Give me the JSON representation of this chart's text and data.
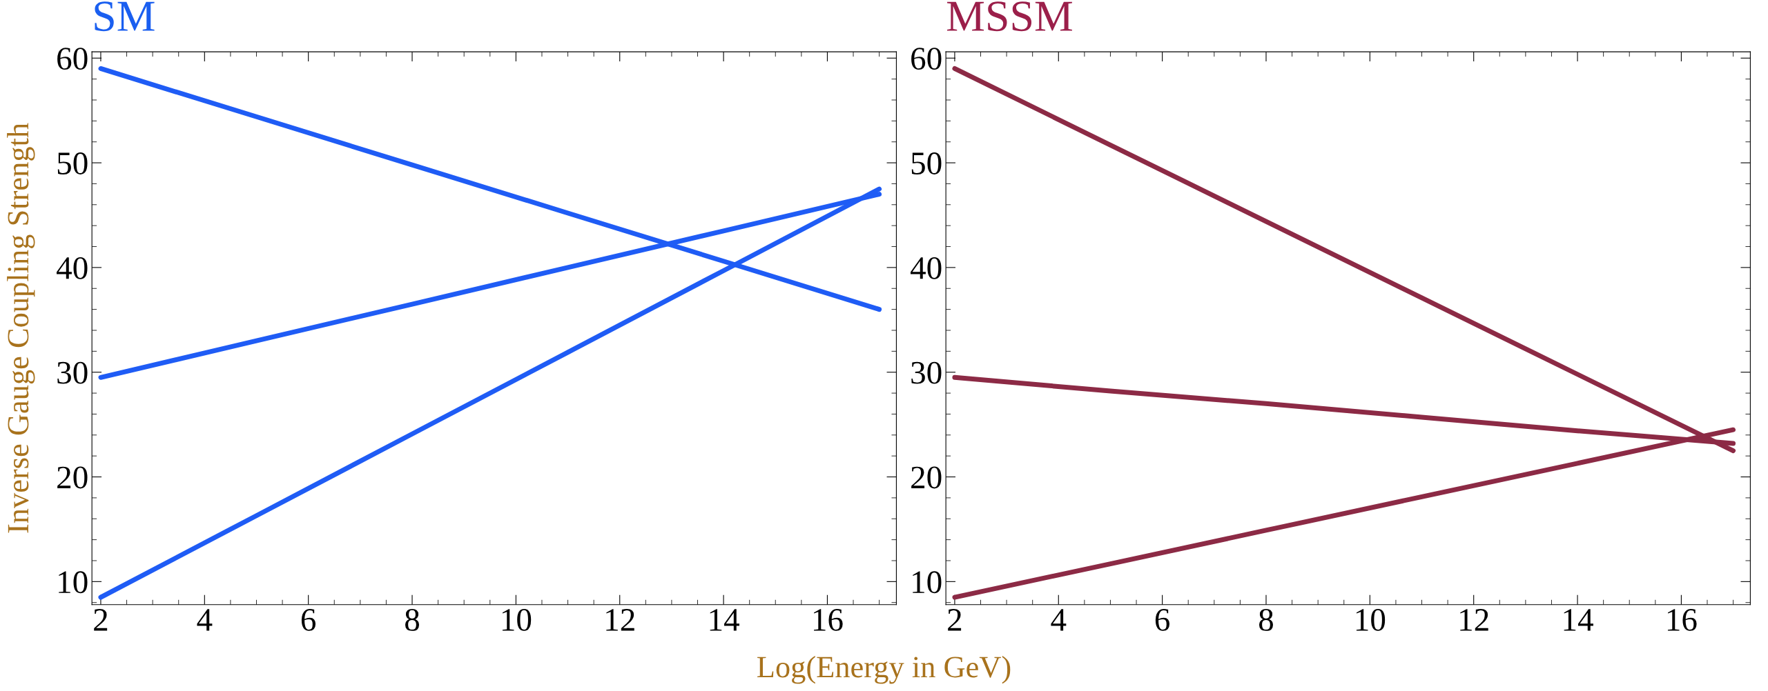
{
  "chart_data": [
    {
      "type": "line",
      "title": "SM",
      "ylabel": "Inverse Gauge Coupling Strength",
      "xlabel": "Log(Energy in GeV)",
      "x": [
        2,
        5,
        8,
        11,
        14,
        17
      ],
      "xlim": [
        1.83,
        17.33
      ],
      "ylim": [
        7.8,
        60.6
      ],
      "xticks": [
        2,
        4,
        6,
        8,
        10,
        12,
        14,
        16
      ],
      "yticks": [
        10,
        20,
        30,
        40,
        50,
        60
      ],
      "grid": false,
      "legend": false,
      "marker": "none",
      "line_style": "solid",
      "series": [
        {
          "color": "#1f5cf5",
          "values": [
            59,
            54.4,
            49.8,
            45.2,
            40.6,
            36
          ]
        },
        {
          "color": "#1f5cf5",
          "values": [
            29.5,
            33,
            36.5,
            40,
            43.5,
            47
          ]
        },
        {
          "color": "#1f5cf5",
          "values": [
            8.5,
            16.3,
            24.1,
            31.9,
            39.7,
            47.5
          ]
        }
      ]
    },
    {
      "type": "line",
      "title": "MSSM",
      "x": [
        2,
        5,
        8,
        11,
        14,
        17
      ],
      "xlim": [
        1.83,
        17.33
      ],
      "ylim": [
        7.8,
        60.6
      ],
      "xticks": [
        2,
        4,
        6,
        8,
        10,
        12,
        14,
        16
      ],
      "yticks": [
        10,
        20,
        30,
        40,
        50,
        60
      ],
      "grid": false,
      "legend": false,
      "marker": "none",
      "line_style": "solid",
      "series": [
        {
          "color": "#8c2a45",
          "values": [
            59,
            51.7,
            44.4,
            37.1,
            29.8,
            22.5
          ]
        },
        {
          "color": "#8c2a45",
          "values": [
            29.5,
            28.2,
            27,
            25.7,
            24.4,
            23.2
          ]
        },
        {
          "color": "#8c2a45",
          "values": [
            8.5,
            11.7,
            14.9,
            18.1,
            21.3,
            24.5
          ]
        }
      ]
    }
  ]
}
